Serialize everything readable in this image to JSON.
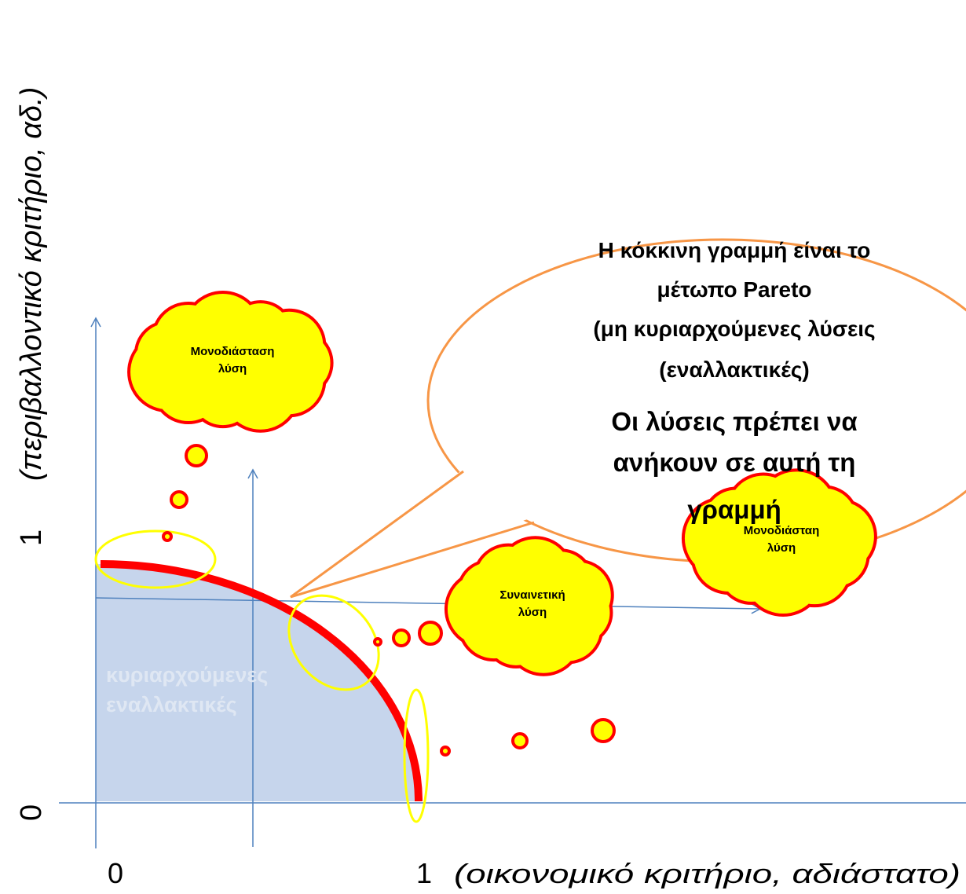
{
  "axes": {
    "y_label": "(περιβαλλοντικό κριτήριο, αδ.)",
    "y_ticks": [
      "0",
      "1"
    ],
    "x_ticks": [
      "0",
      "1"
    ],
    "x_label": "(οικονομικό κριτήριο, αδιάστατο)"
  },
  "callout": {
    "lines": [
      "Η κόκκινη γραμμή είναι το",
      "μέτωπο Pareto",
      "(μη κυριαρχούμενες λύσεις",
      "(εναλλακτικές)",
      "Οι λύσεις πρέπει να",
      "ανήκουν σε αυτή τη",
      "γραμμή"
    ]
  },
  "clouds": [
    {
      "lines": [
        "Μονοδιάσταση",
        "λύση"
      ]
    },
    {
      "lines": [
        "Συναινετική",
        "λύση"
      ]
    },
    {
      "lines": [
        "Μονοδιάσταη",
        "λύση"
      ]
    }
  ],
  "region_label": [
    "κυριαρχούμενες",
    "εναλλακτικές"
  ]
}
